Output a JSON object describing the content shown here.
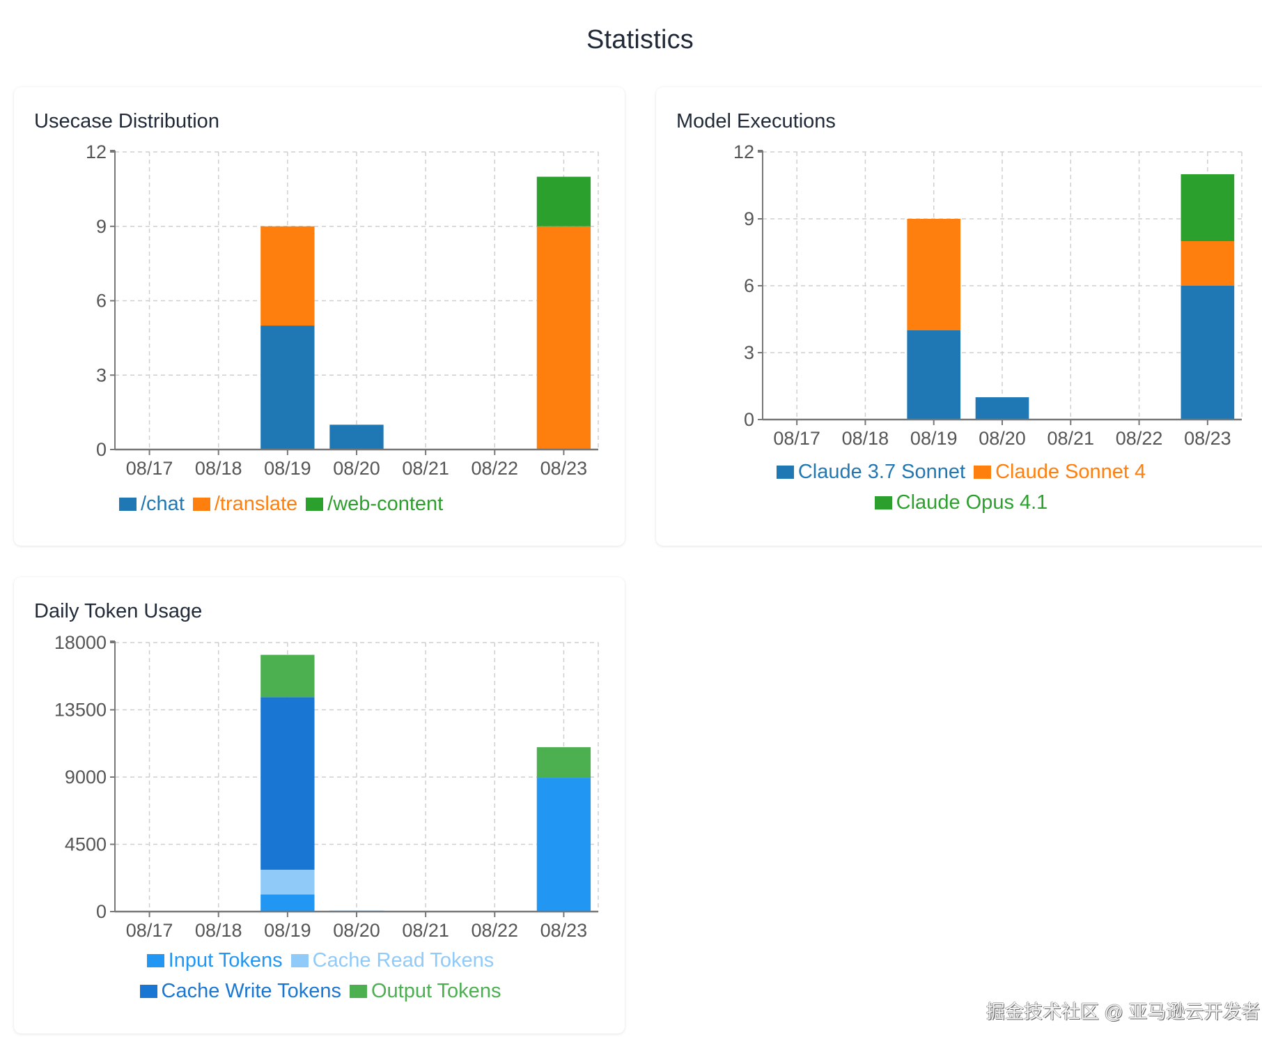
{
  "page": {
    "title": "Statistics"
  },
  "watermark": "掘金技术社区 @ 亚马逊云开发者",
  "chart_data": [
    {
      "id": "usecase",
      "type": "bar",
      "stacked": true,
      "title": "Usecase Distribution",
      "xlabel": "",
      "ylabel": "",
      "categories": [
        "08/17",
        "08/18",
        "08/19",
        "08/20",
        "08/21",
        "08/22",
        "08/23"
      ],
      "yticks": [
        0,
        3,
        6,
        9,
        12
      ],
      "ylim": [
        0,
        12
      ],
      "grid": true,
      "legend_position": "bottom",
      "series": [
        {
          "name": "/chat",
          "color": "#1f77b4",
          "values": [
            0,
            0,
            5,
            1,
            0,
            0,
            0
          ]
        },
        {
          "name": "/translate",
          "color": "#ff7f0e",
          "values": [
            0,
            0,
            4,
            0,
            0,
            0,
            9
          ]
        },
        {
          "name": "/web-content",
          "color": "#2ca02c",
          "values": [
            0,
            0,
            0,
            0,
            0,
            0,
            2
          ]
        }
      ]
    },
    {
      "id": "model",
      "type": "bar",
      "stacked": true,
      "title": "Model Executions",
      "xlabel": "",
      "ylabel": "",
      "categories": [
        "08/17",
        "08/18",
        "08/19",
        "08/20",
        "08/21",
        "08/22",
        "08/23"
      ],
      "yticks": [
        0,
        3,
        6,
        9,
        12
      ],
      "ylim": [
        0,
        12
      ],
      "grid": true,
      "legend_position": "bottom",
      "series": [
        {
          "name": "Claude 3.7 Sonnet",
          "color": "#1f77b4",
          "values": [
            0,
            0,
            4,
            1,
            0,
            0,
            6
          ]
        },
        {
          "name": "Claude Sonnet 4",
          "color": "#ff7f0e",
          "values": [
            0,
            0,
            5,
            0,
            0,
            0,
            2
          ]
        },
        {
          "name": "Claude Opus 4.1",
          "color": "#2ca02c",
          "values": [
            0,
            0,
            0,
            0,
            0,
            0,
            3
          ]
        }
      ]
    },
    {
      "id": "tokens",
      "type": "bar",
      "stacked": true,
      "title": "Daily Token Usage",
      "xlabel": "",
      "ylabel": "",
      "categories": [
        "08/17",
        "08/18",
        "08/19",
        "08/20",
        "08/21",
        "08/22",
        "08/23"
      ],
      "yticks": [
        0,
        4500,
        9000,
        13500,
        18000
      ],
      "ylim": [
        0,
        18000
      ],
      "grid": true,
      "legend_position": "bottom",
      "series": [
        {
          "name": "Input Tokens",
          "color": "#2196f3",
          "values": [
            0,
            0,
            1150,
            60,
            0,
            0,
            8950
          ]
        },
        {
          "name": "Cache Read Tokens",
          "color": "#90caf9",
          "values": [
            0,
            0,
            1650,
            0,
            0,
            0,
            0
          ]
        },
        {
          "name": "Cache Write Tokens",
          "color": "#1976d2",
          "values": [
            0,
            0,
            11550,
            0,
            0,
            0,
            0
          ]
        },
        {
          "name": "Output Tokens",
          "color": "#4caf50",
          "values": [
            0,
            0,
            2830,
            0,
            0,
            0,
            2050
          ]
        }
      ]
    }
  ]
}
